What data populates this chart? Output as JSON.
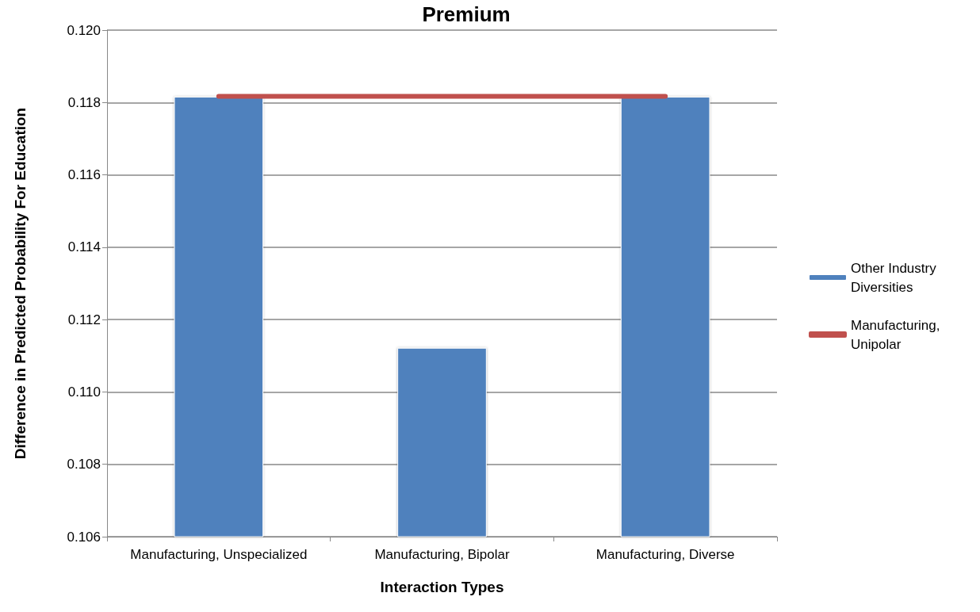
{
  "chart_data": {
    "type": "bar",
    "title": "Premium",
    "xlabel": "Interaction Types",
    "ylabel": "Difference in Predicted Probability For Education",
    "categories": [
      "Manufacturing, Unspecialized",
      "Manufacturing, Bipolar",
      "Manufacturing, Diverse"
    ],
    "series": [
      {
        "name": "Other Industry Diversities",
        "color": "#4f81bd",
        "values": [
          0.11816,
          0.11122,
          0.11816
        ]
      },
      {
        "name": "Manufacturing, Unipolar",
        "type": "line",
        "color": "#c0504d",
        "values": [
          0.11817,
          0.11817,
          0.11817
        ]
      }
    ],
    "ylim": [
      0.106,
      0.12
    ],
    "yticks": [
      0.106,
      0.108,
      {
        "value": 0.11,
        "label": "0.110"
      },
      0.112,
      0.114,
      0.116,
      0.118,
      {
        "value": 0.12,
        "label": "0.120"
      }
    ],
    "grid": "y",
    "legend": "right",
    "marker": "none"
  }
}
